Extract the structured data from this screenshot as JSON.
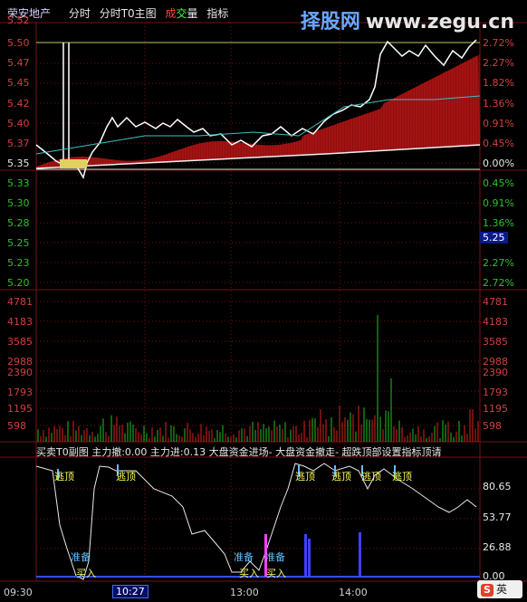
{
  "toolbar": {
    "stock_name": "荣安地产",
    "tab_fenshi": "分时",
    "tab_t0_main": "分时T0主图",
    "label_cheng": "成",
    "label_jiao": "交",
    "label_liang": "量",
    "tab_indicator": "指标"
  },
  "watermark": {
    "cn": "择股网",
    "url": "www.zegu.cn"
  },
  "price_axis": {
    "upper": [
      "5.52",
      "5.50",
      "5.47",
      "5.45",
      "5.42",
      "5.40",
      "5.37",
      "5.35"
    ],
    "lower": [
      "5.33",
      "5.30",
      "5.28",
      "5.25",
      "5.23",
      "5.20"
    ]
  },
  "pct_axis": {
    "upper": [
      "2.72%",
      "2.27%",
      "1.82%",
      "1.36%",
      "0.91%",
      "0.45%",
      "0.00%"
    ],
    "lower": [
      "0.45%",
      "0.91%",
      "1.36%",
      "1.82%",
      "2.27%",
      "2.72%"
    ]
  },
  "current_price_tag": "5.25",
  "volume_axis": [
    "4781",
    "4183",
    "3585",
    "2988",
    "2390",
    "1793",
    "1195",
    "598"
  ],
  "sub_header": "买卖T0副图  主力撤:0.00  主力进:0.13  大盘资金进场-  大盘资金撤走-  超跌顶部设置指标顶请",
  "sub_axis": [
    "80.65",
    "53.77",
    "26.88",
    "0.00"
  ],
  "signals": {
    "top": "逃顶",
    "prepare": "准备",
    "buy": "买入"
  },
  "time_axis": [
    "09:30",
    "10:27",
    "13:00",
    "14:00"
  ],
  "badge": {
    "logo": "S",
    "text": "英"
  },
  "colors": {
    "accent_red": "#d02020",
    "grid_red": "#7a1010",
    "price_line": "#ffffff",
    "avg_line": "#e6e6a0"
  }
}
